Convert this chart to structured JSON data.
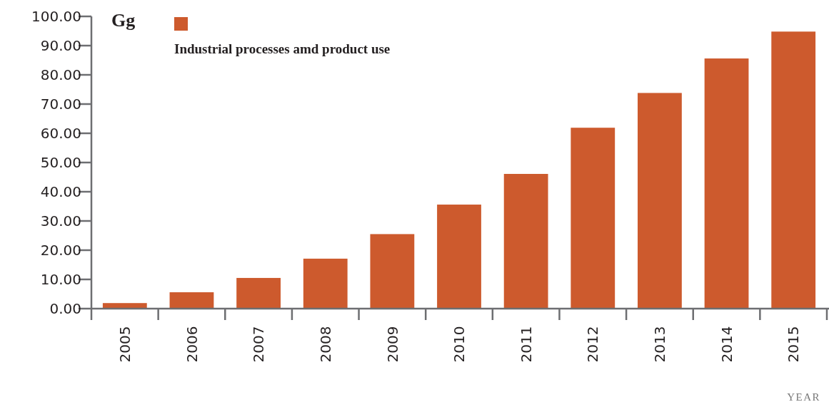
{
  "chart_data": {
    "type": "bar",
    "ylabel": "Gg",
    "xlabel": "YEAR",
    "categories": [
      "2005",
      "2006",
      "2007",
      "2008",
      "2009",
      "2010",
      "2011",
      "2012",
      "2013",
      "2014",
      "2015"
    ],
    "series": [
      {
        "name": "Industrial processes amd product use",
        "color": "#cd5a2d",
        "values": [
          1.9,
          5.6,
          10.5,
          17.1,
          25.5,
          35.6,
          46.1,
          61.9,
          73.8,
          85.6,
          94.8
        ]
      }
    ],
    "ylim": [
      0,
      100
    ],
    "yticks": [
      {
        "value": 0,
        "label": "0.00"
      },
      {
        "value": 10,
        "label": "10.00"
      },
      {
        "value": 20,
        "label": "20.00"
      },
      {
        "value": 30,
        "label": "30.00"
      },
      {
        "value": 40,
        "label": "40.00"
      },
      {
        "value": 50,
        "label": "50.00"
      },
      {
        "value": 60,
        "label": "60.00"
      },
      {
        "value": 70,
        "label": "70.00"
      },
      {
        "value": 80,
        "label": "80.00"
      },
      {
        "value": 90,
        "label": "90.00"
      },
      {
        "value": 100,
        "label": "100.00"
      }
    ],
    "grid": false,
    "legend": "top left"
  }
}
